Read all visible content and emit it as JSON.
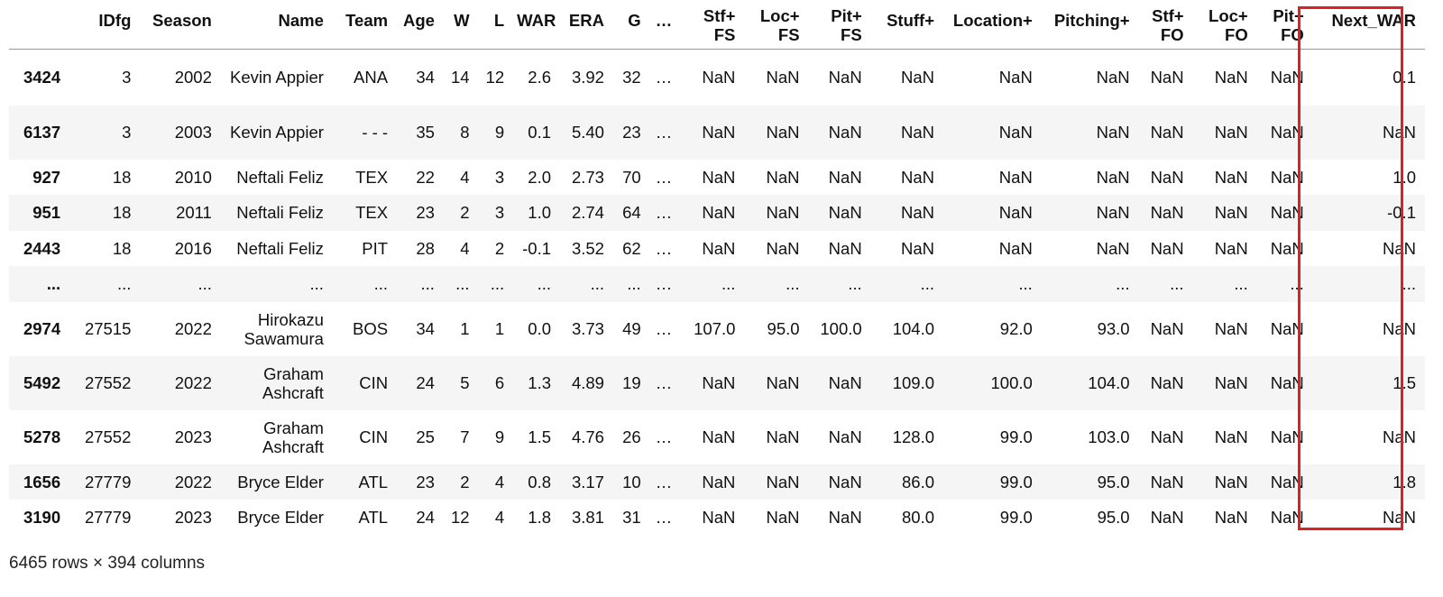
{
  "dataframe": {
    "columns": [
      "IDfg",
      "Season",
      "Name",
      "Team",
      "Age",
      "W",
      "L",
      "WAR",
      "ERA",
      "G",
      "…",
      "Stf+ FS",
      "Loc+ FS",
      "Pit+ FS",
      "Stuff+",
      "Location+",
      "Pitching+",
      "Stf+ FO",
      "Loc+ FO",
      "Pit+ FO",
      "Next_WAR"
    ],
    "header_lines": {
      "stf_fs": [
        "Stf+",
        "FS"
      ],
      "loc_fs": [
        "Loc+",
        "FS"
      ],
      "pit_fs": [
        "Pit+",
        "FS"
      ],
      "stf_fo": [
        "Stf+",
        "FO"
      ],
      "loc_fo": [
        "Loc+",
        "FO"
      ],
      "pit_fo": [
        "Pit+",
        "FO"
      ]
    },
    "rows": [
      {
        "index": "3424",
        "cells": [
          "3",
          "2002",
          "Kevin Appier",
          "ANA",
          "34",
          "14",
          "12",
          "2.6",
          "3.92",
          "32",
          "…",
          "NaN",
          "NaN",
          "NaN",
          "NaN",
          "NaN",
          "NaN",
          "NaN",
          "NaN",
          "NaN",
          "0.1"
        ]
      },
      {
        "index": "6137",
        "cells": [
          "3",
          "2003",
          "Kevin Appier",
          "- - -",
          "35",
          "8",
          "9",
          "0.1",
          "5.40",
          "23",
          "…",
          "NaN",
          "NaN",
          "NaN",
          "NaN",
          "NaN",
          "NaN",
          "NaN",
          "NaN",
          "NaN",
          "NaN"
        ]
      },
      {
        "index": "927",
        "cells": [
          "18",
          "2010",
          "Neftali Feliz",
          "TEX",
          "22",
          "4",
          "3",
          "2.0",
          "2.73",
          "70",
          "…",
          "NaN",
          "NaN",
          "NaN",
          "NaN",
          "NaN",
          "NaN",
          "NaN",
          "NaN",
          "NaN",
          "1.0"
        ]
      },
      {
        "index": "951",
        "cells": [
          "18",
          "2011",
          "Neftali Feliz",
          "TEX",
          "23",
          "2",
          "3",
          "1.0",
          "2.74",
          "64",
          "…",
          "NaN",
          "NaN",
          "NaN",
          "NaN",
          "NaN",
          "NaN",
          "NaN",
          "NaN",
          "NaN",
          "-0.1"
        ]
      },
      {
        "index": "2443",
        "cells": [
          "18",
          "2016",
          "Neftali Feliz",
          "PIT",
          "28",
          "4",
          "2",
          "-0.1",
          "3.52",
          "62",
          "…",
          "NaN",
          "NaN",
          "NaN",
          "NaN",
          "NaN",
          "NaN",
          "NaN",
          "NaN",
          "NaN",
          "NaN"
        ]
      },
      {
        "index": "...",
        "cells": [
          "...",
          "...",
          "...",
          "...",
          "...",
          "...",
          "...",
          "...",
          "...",
          "...",
          "…",
          "...",
          "...",
          "...",
          "...",
          "...",
          "...",
          "...",
          "...",
          "...",
          "..."
        ]
      },
      {
        "index": "2974",
        "cells": [
          "27515",
          "2022",
          "Hirokazu Sawamura",
          "BOS",
          "34",
          "1",
          "1",
          "0.0",
          "3.73",
          "49",
          "…",
          "107.0",
          "95.0",
          "100.0",
          "104.0",
          "92.0",
          "93.0",
          "NaN",
          "NaN",
          "NaN",
          "NaN"
        ]
      },
      {
        "index": "5492",
        "cells": [
          "27552",
          "2022",
          "Graham Ashcraft",
          "CIN",
          "24",
          "5",
          "6",
          "1.3",
          "4.89",
          "19",
          "…",
          "NaN",
          "NaN",
          "NaN",
          "109.0",
          "100.0",
          "104.0",
          "NaN",
          "NaN",
          "NaN",
          "1.5"
        ]
      },
      {
        "index": "5278",
        "cells": [
          "27552",
          "2023",
          "Graham Ashcraft",
          "CIN",
          "25",
          "7",
          "9",
          "1.5",
          "4.76",
          "26",
          "…",
          "NaN",
          "NaN",
          "NaN",
          "128.0",
          "99.0",
          "103.0",
          "NaN",
          "NaN",
          "NaN",
          "NaN"
        ]
      },
      {
        "index": "1656",
        "cells": [
          "27779",
          "2022",
          "Bryce Elder",
          "ATL",
          "23",
          "2",
          "4",
          "0.8",
          "3.17",
          "10",
          "…",
          "NaN",
          "NaN",
          "NaN",
          "86.0",
          "99.0",
          "95.0",
          "NaN",
          "NaN",
          "NaN",
          "1.8"
        ]
      },
      {
        "index": "3190",
        "cells": [
          "27779",
          "2023",
          "Bryce Elder",
          "ATL",
          "24",
          "12",
          "4",
          "1.8",
          "3.81",
          "31",
          "…",
          "NaN",
          "NaN",
          "NaN",
          "80.0",
          "99.0",
          "95.0",
          "NaN",
          "NaN",
          "NaN",
          "NaN"
        ]
      }
    ],
    "shape_caption": "6465 rows × 394 columns"
  },
  "highlight": {
    "column": "Next_WAR",
    "color": "#e02020"
  }
}
